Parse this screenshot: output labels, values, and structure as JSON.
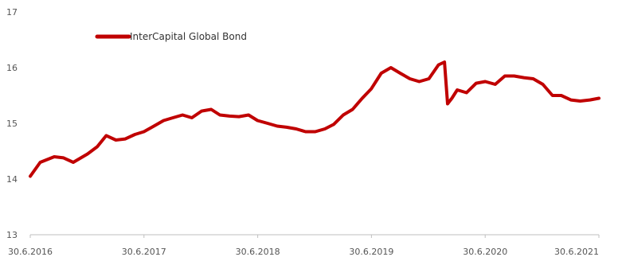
{
  "chart_data": {
    "type": "line",
    "title": "",
    "xlabel": "",
    "ylabel": "",
    "ylim": [
      13,
      17
    ],
    "yticks": [
      "13",
      "14",
      "15",
      "16",
      "17"
    ],
    "xlim": [
      "2016-06-30",
      "2021-06-30"
    ],
    "xticks": [
      "30.6.2016",
      "30.6.2017",
      "30.6.2018",
      "30.6.2019",
      "30.6.2020",
      "30.6.2021"
    ],
    "grid": false,
    "legend": "top-left",
    "series": [
      {
        "name": "InterCapital Global Bond",
        "color": "#c00000",
        "x": [
          "2016-06-30",
          "2016-08-01",
          "2016-09-15",
          "2016-10-15",
          "2016-11-15",
          "2016-12-31",
          "2017-01-31",
          "2017-03-01",
          "2017-04-01",
          "2017-05-01",
          "2017-06-01",
          "2017-06-30",
          "2017-08-01",
          "2017-09-01",
          "2017-10-01",
          "2017-11-01",
          "2017-12-01",
          "2018-01-01",
          "2018-02-01",
          "2018-03-01",
          "2018-04-01",
          "2018-05-01",
          "2018-06-01",
          "2018-06-30",
          "2018-08-01",
          "2018-09-01",
          "2018-10-01",
          "2018-11-01",
          "2018-12-01",
          "2019-01-01",
          "2019-02-01",
          "2019-03-01",
          "2019-04-01",
          "2019-05-01",
          "2019-06-01",
          "2019-06-30",
          "2019-08-01",
          "2019-09-01",
          "2019-10-01",
          "2019-11-01",
          "2019-12-01",
          "2020-01-01",
          "2020-02-01",
          "2020-02-20",
          "2020-03-01",
          "2020-03-15",
          "2020-04-01",
          "2020-05-01",
          "2020-06-01",
          "2020-06-30",
          "2020-08-01",
          "2020-09-01",
          "2020-10-01",
          "2020-11-01",
          "2020-12-01",
          "2021-01-01",
          "2021-02-01",
          "2021-03-01",
          "2021-04-01",
          "2021-05-01",
          "2021-06-01",
          "2021-06-30"
        ],
        "values": [
          14.05,
          14.3,
          14.4,
          14.38,
          14.3,
          14.45,
          14.58,
          14.78,
          14.7,
          14.72,
          14.8,
          14.85,
          14.95,
          15.05,
          15.1,
          15.15,
          15.1,
          15.22,
          15.25,
          15.15,
          15.13,
          15.12,
          15.15,
          15.05,
          15.0,
          14.95,
          14.93,
          14.9,
          14.85,
          14.85,
          14.9,
          14.98,
          15.15,
          15.25,
          15.45,
          15.62,
          15.9,
          16.0,
          15.9,
          15.8,
          15.75,
          15.8,
          16.05,
          16.1,
          15.35,
          15.45,
          15.6,
          15.55,
          15.72,
          15.75,
          15.7,
          15.85,
          15.85,
          15.82,
          15.8,
          15.7,
          15.5,
          15.5,
          15.42,
          15.4,
          15.42,
          15.45
        ]
      }
    ]
  }
}
